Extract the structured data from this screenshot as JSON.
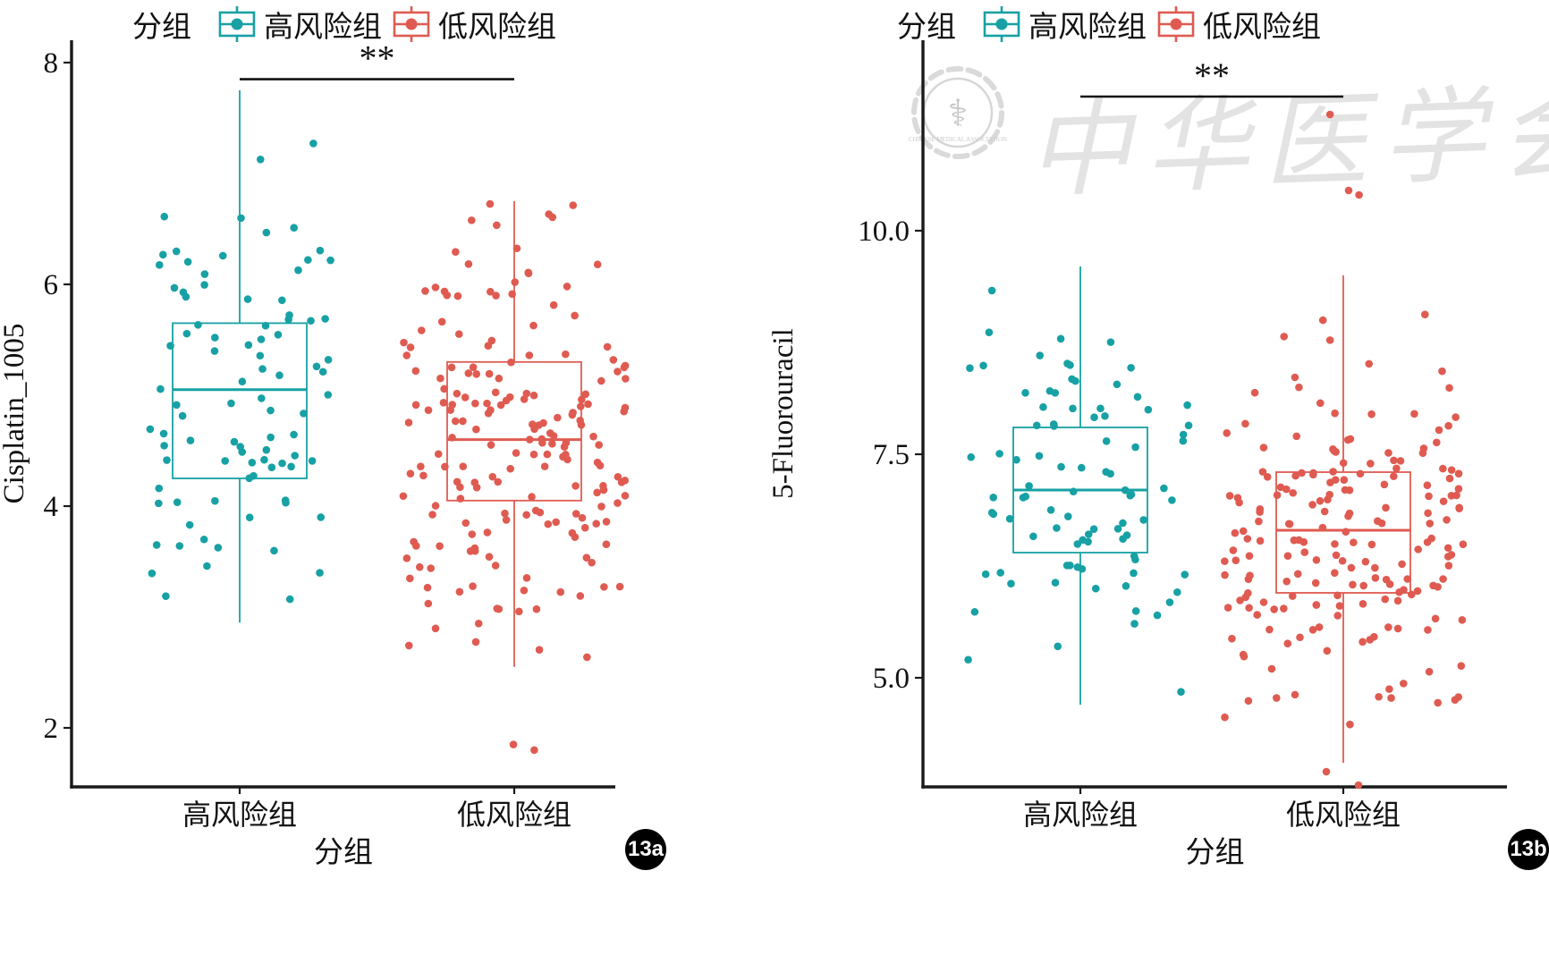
{
  "figure": {
    "legend_title": "分组",
    "legend_entries": [
      {
        "label": "高风险组",
        "color": "#17A1A4"
      },
      {
        "label": "低风险组",
        "color": "#DF5B51"
      }
    ],
    "axis_color": "#1a1a1a",
    "background": "#ffffff"
  },
  "watermark": {
    "seal_symbol": "⚕",
    "seal_text": "CHINESE MEDICAL ASSOCIATION",
    "text": "中华医学会"
  },
  "chart_data": [
    {
      "type": "boxplot",
      "panel_label": "13a",
      "title": "",
      "xlabel": "分组",
      "ylabel": "Cisplatin_1005",
      "categories": [
        "高风险组",
        "低风险组"
      ],
      "yticks": [
        8,
        6,
        4,
        2
      ],
      "ytick_labels": [
        "8",
        "6",
        "4",
        "2"
      ],
      "ylim": [
        1.45,
        8.2
      ],
      "grid": false,
      "legend_position": "top",
      "significance": {
        "label": "**",
        "y": 7.85,
        "between": [
          "高风险组",
          "低风险组"
        ]
      },
      "series": [
        {
          "name": "高风险组",
          "color": "#17A1A4",
          "n_points": 90,
          "whisker_low": 2.95,
          "q1": 4.25,
          "median": 5.05,
          "q3": 5.65,
          "whisker_high": 7.75,
          "outliers": []
        },
        {
          "name": "低风险组",
          "color": "#DF5B51",
          "n_points": 190,
          "whisker_low": 2.55,
          "q1": 4.05,
          "median": 4.6,
          "q3": 5.3,
          "whisker_high": 6.75,
          "outliers": [
            1.85,
            1.8
          ]
        }
      ]
    },
    {
      "type": "boxplot",
      "panel_label": "13b",
      "title": "",
      "xlabel": "分组",
      "ylabel": "5-Fluorouracil",
      "categories": [
        "高风险组",
        "低风险组"
      ],
      "yticks": [
        10.0,
        7.5,
        5.0
      ],
      "ytick_labels": [
        "10.0",
        "7.5",
        "5.0"
      ],
      "ylim": [
        3.8,
        11.9
      ],
      "grid": false,
      "legend_position": "top",
      "significance": {
        "label": "**",
        "y": 11.5,
        "between": [
          "高风险组",
          "低风险组"
        ]
      },
      "series": [
        {
          "name": "高风险组",
          "color": "#17A1A4",
          "n_points": 90,
          "whisker_low": 4.7,
          "q1": 6.4,
          "median": 7.1,
          "q3": 7.8,
          "whisker_high": 9.6,
          "outliers": []
        },
        {
          "name": "低风险组",
          "color": "#DF5B51",
          "n_points": 190,
          "whisker_low": 4.05,
          "q1": 5.95,
          "median": 6.65,
          "q3": 7.3,
          "whisker_high": 9.5,
          "outliers": [
            10.45,
            10.4,
            11.3,
            3.95,
            3.8
          ]
        }
      ]
    }
  ]
}
